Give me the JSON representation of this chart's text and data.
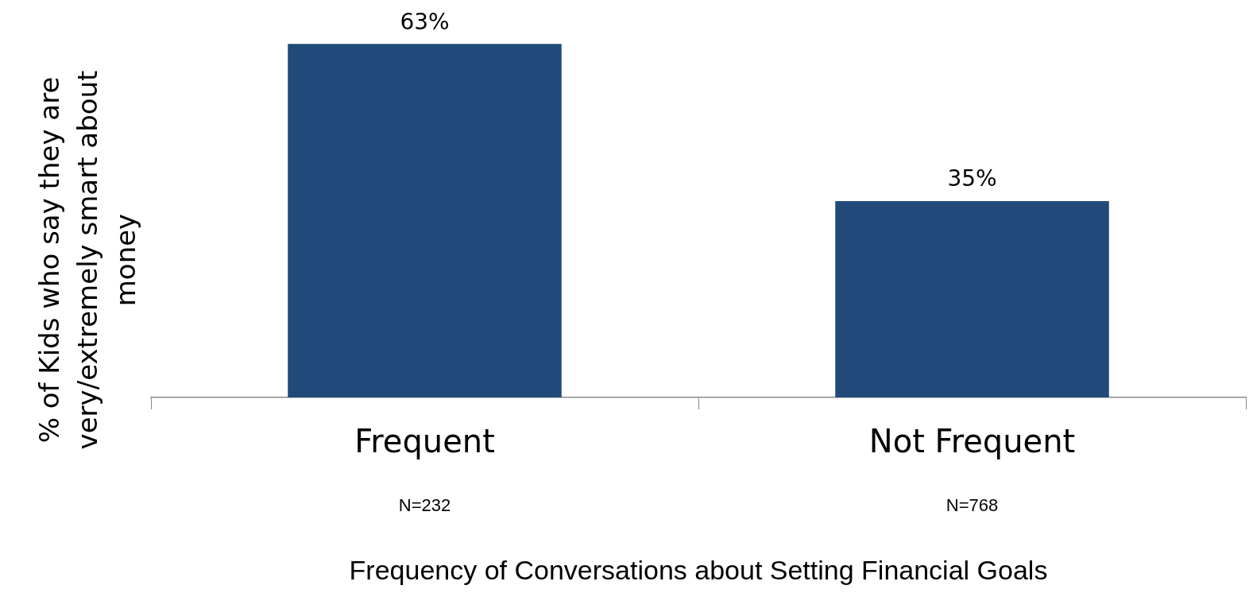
{
  "chart_data": {
    "type": "bar",
    "categories": [
      "Frequent",
      "Not Frequent"
    ],
    "values": [
      63,
      35
    ],
    "value_labels": [
      "63%",
      "35%"
    ],
    "color": "#214a7a",
    "ylabel": "% of Kids who say they are very/extremely smart about money",
    "xlabel": "Frequency of Conversations about Setting Financial Goals",
    "annotations": [
      "N=232",
      "N=768"
    ],
    "grid": false,
    "legend": false
  }
}
